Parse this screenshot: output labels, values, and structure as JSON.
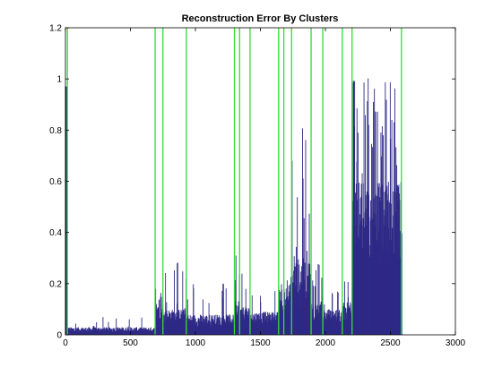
{
  "chart_data": {
    "type": "bar",
    "title": "Reconstruction Error By Clusters",
    "xlabel": "",
    "ylabel": "",
    "xlim": [
      0,
      3000
    ],
    "ylim": [
      0,
      1.2
    ],
    "x_ticks": [
      0,
      500,
      1000,
      1500,
      2000,
      2500,
      3000
    ],
    "x_tick_labels": [
      "0",
      "500",
      "1000",
      "1500",
      "2000",
      "2500",
      "3000"
    ],
    "y_ticks": [
      0,
      0.2,
      0.4,
      0.6,
      0.8,
      1,
      1.2
    ],
    "y_tick_labels": [
      "0",
      "0.2",
      "0.4",
      "0.6",
      "0.8",
      "1",
      "1.2"
    ],
    "grid": false,
    "colors": {
      "bars": "#2e2a86",
      "cluster_lines": "#33dd33",
      "axes": "#000000"
    },
    "cluster_boundaries": [
      15,
      690,
      750,
      930,
      1300,
      1340,
      1420,
      1640,
      1680,
      1740,
      1890,
      1980,
      2130,
      2205,
      2585
    ],
    "segments": [
      {
        "x_start": 0,
        "x_end": 15,
        "base": 0.95,
        "spread": 0.04,
        "spike_rate": 0.0,
        "spike_max": 0.97
      },
      {
        "x_start": 15,
        "x_end": 690,
        "base": 0.01,
        "spread": 0.02,
        "spike_rate": 0.05,
        "spike_max": 0.07
      },
      {
        "x_start": 690,
        "x_end": 750,
        "base": 0.06,
        "spread": 0.08,
        "spike_rate": 0.2,
        "spike_max": 0.21
      },
      {
        "x_start": 750,
        "x_end": 930,
        "base": 0.05,
        "spread": 0.05,
        "spike_rate": 0.08,
        "spike_max": 0.31
      },
      {
        "x_start": 930,
        "x_end": 1300,
        "base": 0.03,
        "spread": 0.05,
        "spike_rate": 0.06,
        "spike_max": 0.21
      },
      {
        "x_start": 1300,
        "x_end": 1340,
        "base": 0.06,
        "spread": 0.08,
        "spike_rate": 0.25,
        "spike_max": 0.31
      },
      {
        "x_start": 1340,
        "x_end": 1420,
        "base": 0.05,
        "spread": 0.06,
        "spike_rate": 0.2,
        "spike_max": 0.24
      },
      {
        "x_start": 1420,
        "x_end": 1640,
        "base": 0.04,
        "spread": 0.05,
        "spike_rate": 0.06,
        "spike_max": 0.19
      },
      {
        "x_start": 1640,
        "x_end": 1680,
        "base": 0.06,
        "spread": 0.08,
        "spike_rate": 0.2,
        "spike_max": 0.22
      },
      {
        "x_start": 1680,
        "x_end": 1740,
        "base": 0.08,
        "spread": 0.12,
        "spike_rate": 0.2,
        "spike_max": 0.35
      },
      {
        "x_start": 1740,
        "x_end": 1890,
        "base": 0.1,
        "spread": 0.2,
        "spike_rate": 0.25,
        "spike_max": 0.97
      },
      {
        "x_start": 1890,
        "x_end": 1980,
        "base": 0.05,
        "spread": 0.08,
        "spike_rate": 0.12,
        "spike_max": 0.31
      },
      {
        "x_start": 1980,
        "x_end": 2130,
        "base": 0.04,
        "spread": 0.06,
        "spike_rate": 0.1,
        "spike_max": 0.21
      },
      {
        "x_start": 2130,
        "x_end": 2205,
        "base": 0.05,
        "spread": 0.08,
        "spike_rate": 0.15,
        "spike_max": 0.21
      },
      {
        "x_start": 2205,
        "x_end": 2585,
        "base": 0.25,
        "spread": 0.35,
        "spike_rate": 0.35,
        "spike_max": 1.02
      },
      {
        "x_start": 2585,
        "x_end": 2590,
        "base": 0.3,
        "spread": 0.1,
        "spike_rate": 0.0,
        "spike_max": 0.92
      }
    ],
    "annotations": []
  }
}
